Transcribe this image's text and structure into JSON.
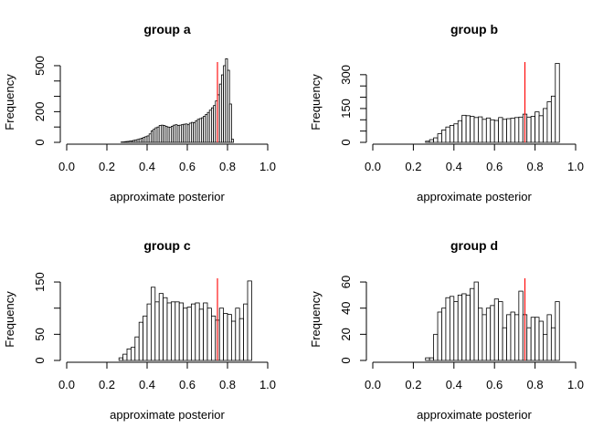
{
  "figure": {
    "background": "#ffffff",
    "bar_fill": "#ffffff",
    "bar_stroke": "#000000",
    "marker_color": "#ff0000"
  },
  "chart_data": [
    {
      "type": "bar",
      "title": "group a",
      "xlabel": "approximate posterior",
      "ylabel": "Frequency",
      "xlim": [
        0,
        1
      ],
      "ylim": [
        0,
        500
      ],
      "xticks": [
        "0.0",
        "0.2",
        "0.4",
        "0.6",
        "0.8",
        "1.0"
      ],
      "yticks": [
        "0",
        "200",
        "500"
      ],
      "ytick_values": [
        0,
        200,
        500
      ],
      "yminor": [
        100,
        300,
        400
      ],
      "vline": 0.75,
      "bin_start": 0.27,
      "bin_width": 0.01,
      "values": [
        2,
        3,
        5,
        6,
        8,
        10,
        13,
        16,
        19,
        23,
        27,
        32,
        37,
        42,
        55,
        75,
        85,
        95,
        100,
        110,
        112,
        110,
        105,
        100,
        98,
        105,
        112,
        115,
        110,
        112,
        115,
        118,
        120,
        115,
        125,
        130,
        128,
        140,
        150,
        155,
        160,
        170,
        182,
        195,
        210,
        225,
        240,
        270,
        310,
        380,
        440,
        500,
        545,
        470,
        250,
        20
      ]
    },
    {
      "type": "bar",
      "title": "group b",
      "xlabel": "approximate posterior",
      "ylabel": "Frequency",
      "xlim": [
        0,
        1
      ],
      "ylim": [
        0,
        340
      ],
      "xticks": [
        "0.0",
        "0.2",
        "0.4",
        "0.6",
        "0.8",
        "1.0"
      ],
      "yticks": [
        "0",
        "150",
        "300"
      ],
      "ytick_values": [
        0,
        150,
        300
      ],
      "yminor": [
        50,
        100,
        200,
        250
      ],
      "vline": 0.75,
      "bin_start": 0.26,
      "bin_width": 0.02,
      "values": [
        5,
        12,
        20,
        38,
        55,
        68,
        75,
        82,
        96,
        120,
        118,
        115,
        110,
        113,
        102,
        108,
        100,
        97,
        110,
        102,
        105,
        107,
        110,
        112,
        125,
        112,
        115,
        135,
        118,
        150,
        180,
        205,
        350
      ]
    },
    {
      "type": "bar",
      "title": "group c",
      "xlabel": "approximate posterior",
      "ylabel": "Frequency",
      "xlim": [
        0,
        1
      ],
      "ylim": [
        0,
        150
      ],
      "xticks": [
        "0.0",
        "0.2",
        "0.4",
        "0.6",
        "0.8",
        "1.0"
      ],
      "yticks": [
        "0",
        "50",
        "150"
      ],
      "ytick_values": [
        0,
        50,
        150
      ],
      "yminor": [
        100
      ],
      "vline": 0.75,
      "bin_start": 0.26,
      "bin_width": 0.02,
      "values": [
        5,
        12,
        22,
        25,
        45,
        73,
        85,
        108,
        140,
        112,
        128,
        120,
        110,
        112,
        112,
        110,
        100,
        102,
        108,
        110,
        98,
        110,
        100,
        85,
        77,
        100,
        90,
        88,
        75,
        100,
        80,
        108,
        152
      ]
    },
    {
      "type": "bar",
      "title": "group d",
      "xlabel": "approximate posterior",
      "ylabel": "Frequency",
      "xlim": [
        0,
        1
      ],
      "ylim": [
        0,
        60
      ],
      "xticks": [
        "0.0",
        "0.2",
        "0.4",
        "0.6",
        "0.8",
        "1.0"
      ],
      "yticks": [
        "0",
        "20",
        "40",
        "60"
      ],
      "ytick_values": [
        0,
        20,
        40,
        60
      ],
      "yminor": [],
      "vline": 0.75,
      "bin_start": 0.26,
      "bin_width": 0.02,
      "values": [
        2,
        2,
        20,
        37,
        40,
        48,
        49,
        45,
        50,
        51,
        50,
        55,
        60,
        40,
        35,
        40,
        42,
        47,
        45,
        25,
        35,
        37,
        35,
        53,
        35,
        25,
        33,
        33,
        30,
        20,
        35,
        25,
        45
      ]
    }
  ]
}
